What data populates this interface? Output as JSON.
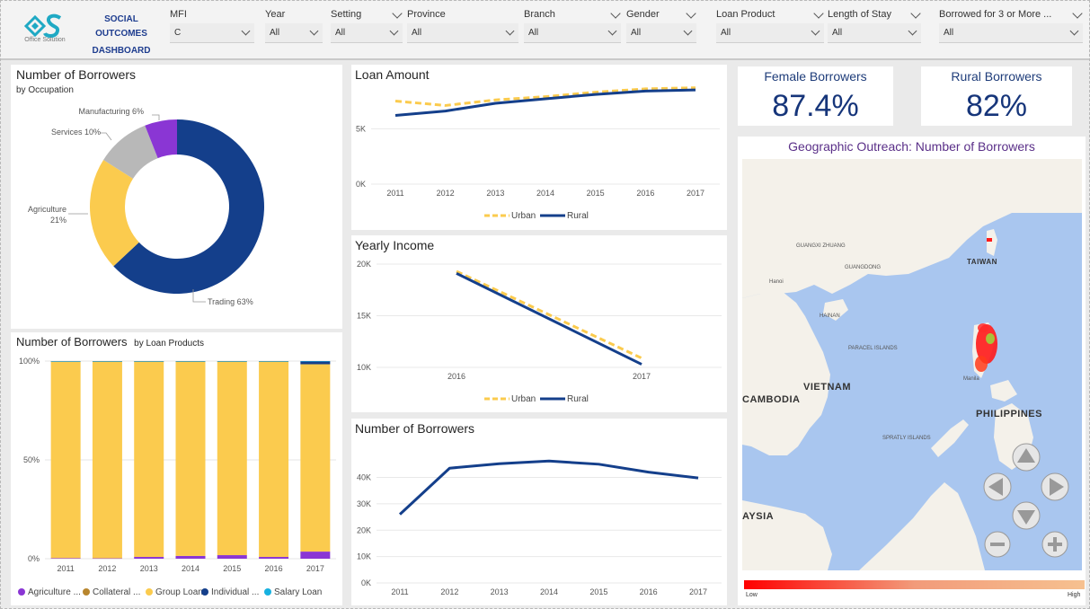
{
  "header": {
    "logo_sub": "Office Solution",
    "dashboard_title_line1": "SOCIAL OUTCOMES",
    "dashboard_title_line2": "DASHBOARD",
    "filters": [
      {
        "label": "MFI",
        "value": "C"
      },
      {
        "label": "Year",
        "value": "All"
      },
      {
        "label": "Setting",
        "value": "All"
      },
      {
        "label": "Province",
        "value": "All"
      },
      {
        "label": "Branch",
        "value": "All"
      },
      {
        "label": "Gender",
        "value": "All"
      },
      {
        "label": "Loan Product",
        "value": "All"
      },
      {
        "label": "Length of Stay",
        "value": "All"
      },
      {
        "label": "Borrowed for 3 or More ...",
        "value": "All"
      }
    ]
  },
  "cards": {
    "female": {
      "title": "Female Borrowers",
      "value": "87.4%"
    },
    "rural": {
      "title": "Rural Borrowers",
      "value": "82%"
    }
  },
  "map": {
    "title": "Geographic Outreach: Number of Borrowers",
    "labels": {
      "vietnam": "VIETNAM",
      "cambodia": "CAMBODIA",
      "philippines": "PHILIPPINES",
      "taiwan": "TAIWAN",
      "asia": "AYSIA",
      "paracel": "PARACEL ISLANDS",
      "spratly": "SPRATLY ISLANDS",
      "hainan": "HAINAN",
      "guangdong": "GUANGDONG",
      "guangxi": "GUANGXI ZHUANG",
      "hanoi": "Hanoi",
      "manila": "Manila"
    },
    "legend_low": "Low",
    "legend_high": "High"
  },
  "chart_data": [
    {
      "id": "occupation",
      "type": "pie",
      "title": "Number of Borrowers",
      "subtitle": "by Occupation",
      "categories": [
        "Trading",
        "Agriculture",
        "Services",
        "Manufacturing"
      ],
      "values": [
        63,
        21,
        10,
        6
      ],
      "labels": [
        "Trading 63%",
        "Agriculture 21%",
        "Services 10%",
        "Manufacturing 6%"
      ],
      "colors": [
        "#143f8b",
        "#fbcb4e",
        "#b8b8b8",
        "#8a36d4"
      ]
    },
    {
      "id": "loan_products",
      "type": "bar",
      "stacked": true,
      "title": "Number of Borrowers",
      "subtitle": "by Loan Products",
      "categories": [
        "2011",
        "2012",
        "2013",
        "2014",
        "2015",
        "2016",
        "2017"
      ],
      "ylim": [
        0,
        100
      ],
      "yticks": [
        "0%",
        "50%",
        "100%"
      ],
      "series": [
        {
          "name": "Agriculture ...",
          "color": "#8a36d4",
          "values": [
            0.3,
            0.2,
            0.9,
            1.4,
            1.8,
            0.9,
            3.6
          ]
        },
        {
          "name": "Collateral ...",
          "color": "#b8862e",
          "values": [
            0,
            0,
            0,
            0,
            0,
            0,
            0
          ]
        },
        {
          "name": "Group Loan",
          "color": "#fbcb4e",
          "values": [
            99.4,
            99.6,
            98.9,
            98.4,
            98,
            98.9,
            94.8
          ]
        },
        {
          "name": "Individual ...",
          "color": "#143f8b",
          "values": [
            0.2,
            0.1,
            0.1,
            0.1,
            0.1,
            0.1,
            1.5
          ]
        },
        {
          "name": "Salary Loan",
          "color": "#17b1e0",
          "values": [
            0.1,
            0.1,
            0.1,
            0.1,
            0.1,
            0.1,
            0.1
          ]
        }
      ]
    },
    {
      "id": "loan_amount",
      "type": "line",
      "title": "Loan Amount",
      "x": [
        "2011",
        "2012",
        "2013",
        "2014",
        "2015",
        "2016",
        "2017"
      ],
      "ylim": [
        0,
        9000
      ],
      "yticks": [
        0,
        5000
      ],
      "ytick_labels": [
        "0K",
        "5K"
      ],
      "series": [
        {
          "name": "Rural",
          "color": "#143f8b",
          "dash": false,
          "values": [
            6200,
            6600,
            7300,
            7700,
            8100,
            8400,
            8500
          ]
        },
        {
          "name": "Urban",
          "color": "#fbcb4e",
          "dash": true,
          "values": [
            7500,
            7100,
            7600,
            7900,
            8300,
            8600,
            8700
          ]
        }
      ]
    },
    {
      "id": "yearly_income",
      "type": "line",
      "title": "Yearly Income",
      "x": [
        "2016",
        "2017"
      ],
      "ylim": [
        10000,
        20000
      ],
      "yticks": [
        10000,
        15000,
        20000
      ],
      "ytick_labels": [
        "10K",
        "15K",
        "20K"
      ],
      "series": [
        {
          "name": "Rural",
          "color": "#143f8b",
          "dash": false,
          "values": [
            19100,
            10300
          ]
        },
        {
          "name": "Urban",
          "color": "#fbcb4e",
          "dash": true,
          "values": [
            19300,
            10900
          ]
        }
      ]
    },
    {
      "id": "borrowers_trend",
      "type": "line",
      "title": "Number of Borrowers",
      "x": [
        "2011",
        "2012",
        "2013",
        "2014",
        "2015",
        "2016",
        "2017"
      ],
      "ylim": [
        0,
        48000
      ],
      "yticks": [
        0,
        10000,
        20000,
        30000,
        40000
      ],
      "ytick_labels": [
        "0K",
        "10K",
        "20K",
        "30K",
        "40K"
      ],
      "series": [
        {
          "name": "Borrowers",
          "color": "#143f8b",
          "dash": false,
          "values": [
            26000,
            43500,
            45200,
            46200,
            45000,
            42000,
            39800
          ]
        }
      ]
    }
  ]
}
